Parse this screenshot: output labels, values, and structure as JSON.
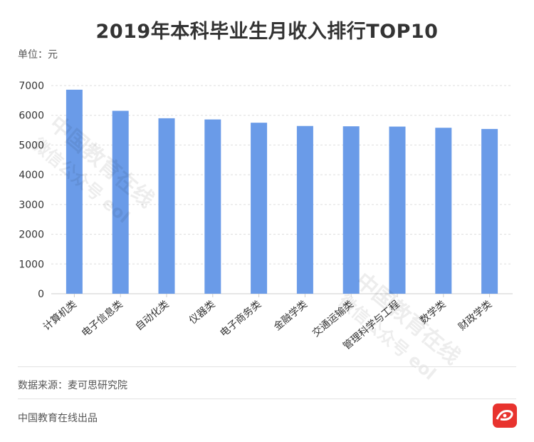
{
  "title": "2019年本科毕业生月收入排行TOP10",
  "unit_label": "单位：元",
  "source_label": "数据来源：麦可思研究院",
  "producer_label": "中国教育在线出品",
  "watermark": {
    "line1": "中国教育在线",
    "line2": "微信公众号 eol"
  },
  "colors": {
    "bar": "#6a9be8",
    "grid": "#dddddd",
    "axis": "#cccccc",
    "text": "#333333",
    "logo": "#e8332e"
  },
  "chart_data": {
    "type": "bar",
    "title": "2019年本科毕业生月收入排行TOP10",
    "ylabel": "单位：元",
    "categories": [
      "计算机类",
      "电子信息类",
      "自动化类",
      "仪器类",
      "电子商务类",
      "金融学类",
      "交通运输类",
      "管理科学与工程",
      "数学类",
      "财政学类"
    ],
    "values": [
      6860,
      6150,
      5900,
      5860,
      5750,
      5640,
      5630,
      5620,
      5580,
      5540
    ],
    "ylim": [
      0,
      7000
    ],
    "yticks": [
      0,
      1000,
      2000,
      3000,
      4000,
      5000,
      6000,
      7000
    ],
    "grid": true,
    "legend": "none"
  }
}
